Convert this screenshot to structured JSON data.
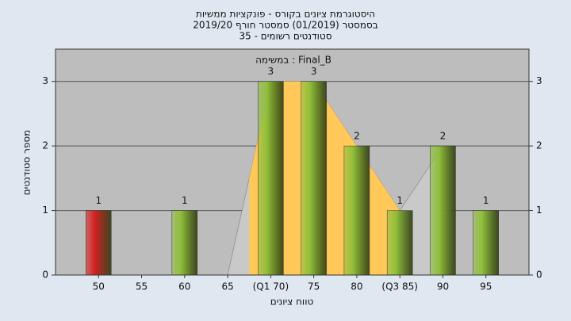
{
  "chart_data": {
    "type": "bar",
    "title": [
      "היסטוגרמת ציונים בקורס - פונקציות ממשיות",
      "בסמסטר (01/2019) סמסטר חורף 2019/20",
      "סטודנטים רשומים - 35"
    ],
    "annotation": "במשימה : Final_B",
    "xlabel": "טווח ציונים",
    "ylabel": "מספר סטודנטים",
    "categories": [
      "50",
      "55",
      "60",
      "65",
      "(Q1 70)",
      "75",
      "80",
      "(Q3 85)",
      "90",
      "95"
    ],
    "values": [
      1,
      0,
      1,
      0,
      3,
      3,
      2,
      1,
      2,
      1
    ],
    "colors": [
      "#d42020",
      "#8fbf3a",
      "#8fbf3a",
      "#8fbf3a",
      "#8fbf3a",
      "#8fbf3a",
      "#8fbf3a",
      "#8fbf3a",
      "#8fbf3a",
      "#8fbf3a"
    ],
    "area_color": "#ffc859",
    "ylim": [
      0,
      3.5
    ],
    "yticks": [
      0,
      1,
      2,
      3
    ],
    "grid": true
  }
}
